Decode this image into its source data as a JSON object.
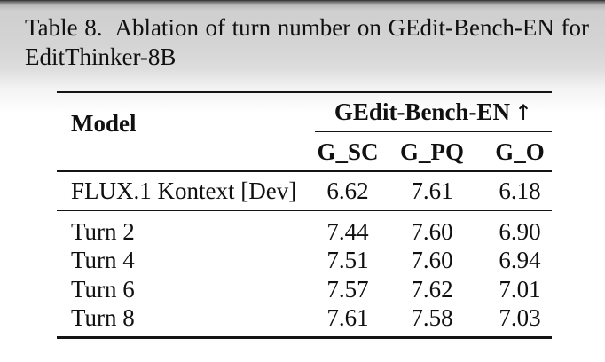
{
  "caption": {
    "label": "Table 8.",
    "text": "Ablation of turn number on GEdit-Bench-EN for",
    "line2": "EditThinker-8B"
  },
  "table": {
    "model_header": "Model",
    "group_header": "GEdit-Bench-EN",
    "group_arrow": "↑",
    "columns": [
      "G_SC",
      "G_PQ",
      "G_O"
    ],
    "rows": [
      {
        "model": "FLUX.1 Kontext [Dev]",
        "values": [
          "6.62",
          "7.61",
          "6.18"
        ]
      },
      {
        "model": "Turn 2",
        "values": [
          "7.44",
          "7.60",
          "6.90"
        ]
      },
      {
        "model": "Turn 4",
        "values": [
          "7.51",
          "7.60",
          "6.94"
        ]
      },
      {
        "model": "Turn 6",
        "values": [
          "7.57",
          "7.62",
          "7.01"
        ]
      },
      {
        "model": "Turn 8",
        "values": [
          "7.61",
          "7.58",
          "7.03"
        ]
      }
    ]
  },
  "colors": {
    "text": "#101010",
    "rule": "#141414",
    "bg-top-edge": "#2a2a2a",
    "bg-top": "#d4d4d4",
    "bg-bottom": "#ffffff"
  }
}
